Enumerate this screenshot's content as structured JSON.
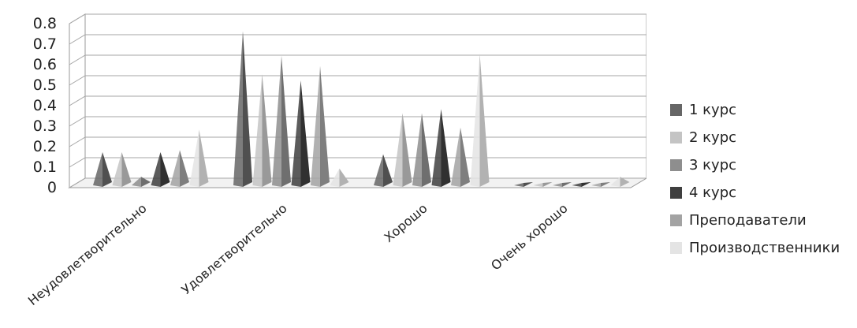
{
  "chart_data": {
    "type": "bar",
    "subtype": "3d-pyramid",
    "title": "",
    "xlabel": "",
    "ylabel": "",
    "ylim": [
      0,
      0.8
    ],
    "yticks": [
      "0",
      "0.1",
      "0.2",
      "0.3",
      "0.4",
      "0.5",
      "0.6",
      "0.7",
      "0.8"
    ],
    "grid": true,
    "legend_position": "right",
    "categories": [
      "Неудовлетворительно",
      "Удовлетворительно",
      "Хорошо",
      "Очень хорошо"
    ],
    "series": [
      {
        "name": "1 курс",
        "color": "#666666",
        "values": [
          0.15,
          0.74,
          0.14,
          0.0
        ]
      },
      {
        "name": "2 курс",
        "color": "#c4c4c4",
        "values": [
          0.15,
          0.53,
          0.34,
          0.0
        ]
      },
      {
        "name": "3 курс",
        "color": "#8e8e8e",
        "values": [
          0.03,
          0.62,
          0.34,
          0.0
        ]
      },
      {
        "name": "4 курс",
        "color": "#3f3f3f",
        "values": [
          0.15,
          0.5,
          0.36,
          0.0
        ]
      },
      {
        "name": "Преподаватели",
        "color": "#a3a3a3",
        "values": [
          0.16,
          0.57,
          0.27,
          0.0
        ]
      },
      {
        "name": "Производственники",
        "color": "#e4e4e4",
        "values": [
          0.26,
          0.07,
          0.63,
          0.03
        ]
      }
    ]
  }
}
